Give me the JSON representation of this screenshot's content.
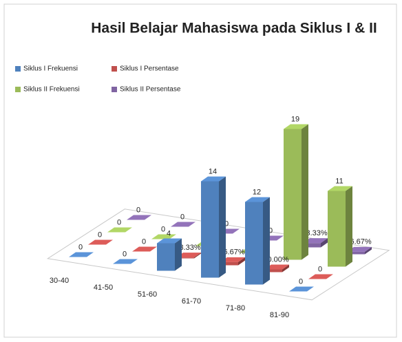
{
  "chart_data": {
    "type": "bar3d",
    "title": "Hasil Belajar Mahasiswa pada Siklus I & II",
    "categories": [
      "30-40",
      "41-50",
      "51-60",
      "61-70",
      "71-80",
      "81-90"
    ],
    "series": [
      {
        "name": "Siklus I Frekuensi",
        "color": "#4f81bd",
        "values": [
          0,
          0,
          4,
          14,
          12,
          0
        ],
        "value_labels": [
          "0",
          "0",
          "4",
          "14",
          "12",
          "0"
        ]
      },
      {
        "name": "Siklus I Persentase",
        "color": "#c0504d",
        "values": [
          0,
          0,
          0.1333,
          0.4667,
          0.4,
          0
        ],
        "value_labels": [
          "0",
          "0",
          "13.33%",
          "46.67%",
          "40.00%",
          "0"
        ]
      },
      {
        "name": "Siklus II Frekuensi",
        "color": "#9bbb59",
        "values": [
          0,
          0,
          0,
          0,
          19,
          11
        ],
        "value_labels": [
          "0",
          "0",
          "0",
          "0",
          "19",
          "11"
        ]
      },
      {
        "name": "Siklus II Persentase",
        "color": "#8064a2",
        "values": [
          0,
          0,
          0,
          0,
          0.6333,
          0.3667
        ],
        "value_labels": [
          "0",
          "0",
          "0",
          "0",
          "63.33%",
          "36.67%"
        ]
      }
    ],
    "ylim": [
      0,
      20
    ]
  }
}
